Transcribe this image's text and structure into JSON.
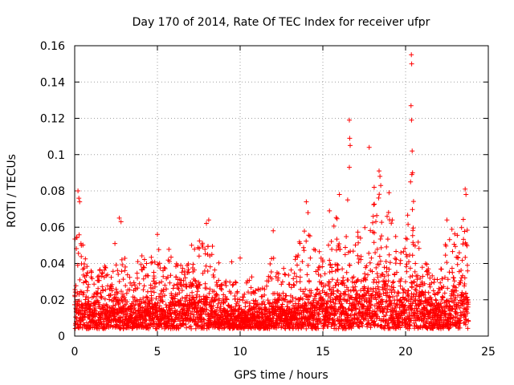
{
  "chart_data": {
    "type": "scatter",
    "title": "Day 170 of 2014, Rate Of TEC Index for receiver ufpr",
    "xlabel": "GPS time / hours",
    "ylabel": "ROTI / TECUs",
    "xlim": [
      0,
      25
    ],
    "ylim": [
      0,
      0.16
    ],
    "xticks": [
      0,
      5,
      10,
      15,
      20,
      25
    ],
    "xtick_labels": [
      "0",
      "5",
      "10",
      "15",
      "20",
      "25"
    ],
    "yticks": [
      0,
      0.02,
      0.04,
      0.06,
      0.08,
      0.1,
      0.12,
      0.14,
      0.16
    ],
    "ytick_labels": [
      "0",
      "0.02",
      "0.04",
      "0.06",
      "0.08",
      "0.1",
      "0.12",
      "0.14",
      "0.16"
    ],
    "grid": true,
    "marker": "+",
    "marker_color": "#ff0000",
    "series": [
      {
        "name": "ROTI",
        "profile": [
          [
            0.0,
            0.03,
            0.08
          ],
          [
            0.5,
            0.022,
            0.058
          ],
          [
            1.0,
            0.02,
            0.042
          ],
          [
            1.5,
            0.022,
            0.04
          ],
          [
            2.0,
            0.02,
            0.045
          ],
          [
            2.5,
            0.025,
            0.065
          ],
          [
            3.0,
            0.018,
            0.045
          ],
          [
            3.5,
            0.015,
            0.03
          ],
          [
            4.0,
            0.02,
            0.05
          ],
          [
            4.5,
            0.022,
            0.048
          ],
          [
            5.0,
            0.02,
            0.056
          ],
          [
            5.5,
            0.015,
            0.052
          ],
          [
            6.0,
            0.02,
            0.046
          ],
          [
            6.5,
            0.025,
            0.045
          ],
          [
            7.0,
            0.028,
            0.05
          ],
          [
            7.5,
            0.025,
            0.058
          ],
          [
            8.0,
            0.025,
            0.064
          ],
          [
            8.5,
            0.022,
            0.058
          ],
          [
            9.0,
            0.018,
            0.03
          ],
          [
            9.5,
            0.015,
            0.043
          ],
          [
            10.0,
            0.012,
            0.025
          ],
          [
            10.5,
            0.015,
            0.041
          ],
          [
            11.0,
            0.015,
            0.03
          ],
          [
            11.5,
            0.014,
            0.03
          ],
          [
            12.0,
            0.02,
            0.058
          ],
          [
            12.5,
            0.02,
            0.044
          ],
          [
            13.0,
            0.018,
            0.04
          ],
          [
            13.5,
            0.02,
            0.055
          ],
          [
            14.0,
            0.022,
            0.074
          ],
          [
            14.5,
            0.022,
            0.06
          ],
          [
            15.0,
            0.025,
            0.048
          ],
          [
            15.5,
            0.03,
            0.069
          ],
          [
            16.0,
            0.028,
            0.078
          ],
          [
            16.5,
            0.03,
            0.06
          ],
          [
            17.0,
            0.028,
            0.06
          ],
          [
            17.5,
            0.03,
            0.066
          ],
          [
            18.0,
            0.035,
            0.082
          ],
          [
            18.5,
            0.035,
            0.09
          ],
          [
            19.0,
            0.03,
            0.077
          ],
          [
            19.5,
            0.025,
            0.05
          ],
          [
            20.0,
            0.025,
            0.06
          ],
          [
            20.5,
            0.03,
            0.088
          ],
          [
            21.0,
            0.022,
            0.045
          ],
          [
            21.5,
            0.02,
            0.046
          ],
          [
            22.0,
            0.022,
            0.044
          ],
          [
            22.5,
            0.022,
            0.064
          ],
          [
            23.0,
            0.025,
            0.058
          ],
          [
            23.5,
            0.03,
            0.081
          ],
          [
            23.8,
            0.03,
            0.08
          ]
        ],
        "baseline": 0.004,
        "sample_step_hours": 0.0065,
        "outliers": [
          {
            "x": 0.2,
            "y": 0.08
          },
          {
            "x": 0.25,
            "y": 0.076
          },
          {
            "x": 0.3,
            "y": 0.074
          },
          {
            "x": 2.7,
            "y": 0.065
          },
          {
            "x": 2.8,
            "y": 0.063
          },
          {
            "x": 5.0,
            "y": 0.056
          },
          {
            "x": 8.1,
            "y": 0.064
          },
          {
            "x": 10.0,
            "y": 0.043
          },
          {
            "x": 12.0,
            "y": 0.058
          },
          {
            "x": 14.0,
            "y": 0.074
          },
          {
            "x": 14.1,
            "y": 0.068
          },
          {
            "x": 15.4,
            "y": 0.069
          },
          {
            "x": 16.0,
            "y": 0.078
          },
          {
            "x": 16.6,
            "y": 0.119
          },
          {
            "x": 16.62,
            "y": 0.109
          },
          {
            "x": 16.65,
            "y": 0.105
          },
          {
            "x": 16.6,
            "y": 0.093
          },
          {
            "x": 16.5,
            "y": 0.075
          },
          {
            "x": 17.8,
            "y": 0.104
          },
          {
            "x": 18.1,
            "y": 0.082
          },
          {
            "x": 18.4,
            "y": 0.091
          },
          {
            "x": 18.45,
            "y": 0.088
          },
          {
            "x": 18.5,
            "y": 0.083
          },
          {
            "x": 19.0,
            "y": 0.079
          },
          {
            "x": 20.35,
            "y": 0.155
          },
          {
            "x": 20.37,
            "y": 0.15
          },
          {
            "x": 20.33,
            "y": 0.127
          },
          {
            "x": 20.36,
            "y": 0.119
          },
          {
            "x": 20.4,
            "y": 0.102
          },
          {
            "x": 20.42,
            "y": 0.09
          },
          {
            "x": 20.38,
            "y": 0.089
          },
          {
            "x": 20.3,
            "y": 0.085
          },
          {
            "x": 22.5,
            "y": 0.064
          },
          {
            "x": 23.6,
            "y": 0.081
          },
          {
            "x": 23.65,
            "y": 0.078
          }
        ]
      }
    ]
  }
}
